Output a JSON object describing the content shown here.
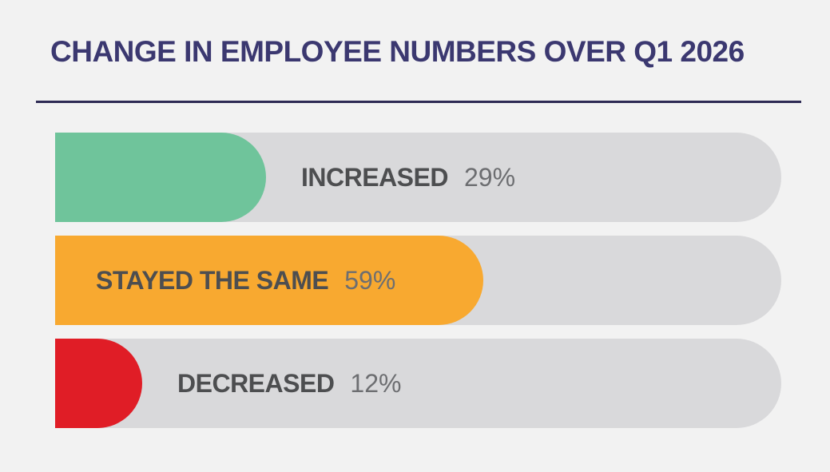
{
  "title": "CHANGE IN EMPLOYEE NUMBERS OVER Q1 2026",
  "colors": {
    "background": "#f2f2f2",
    "title": "#3b3870",
    "divider": "#2e2b55",
    "track": "#d9d9db",
    "label_text": "#4d4e50",
    "percent_text": "#6d6e71"
  },
  "chart_data": {
    "type": "bar",
    "orientation": "horizontal",
    "title": "CHANGE IN EMPLOYEE NUMBERS OVER Q1 2026",
    "categories": [
      "INCREASED",
      "STAYED THE SAME",
      "DECREASED"
    ],
    "values": [
      29,
      59,
      12
    ],
    "unit": "%",
    "series": [
      {
        "label": "INCREASED",
        "value": 29,
        "display": "29%",
        "color": "#6fc49b"
      },
      {
        "label": "STAYED THE SAME",
        "value": 59,
        "display": "59%",
        "color": "#f8a930"
      },
      {
        "label": "DECREASED",
        "value": 12,
        "display": "12%",
        "color": "#e01d26"
      }
    ],
    "xlim": [
      0,
      100
    ],
    "grid": false,
    "legend": false,
    "layout_hints": {
      "rounded_right_ends": true,
      "square_left_ends": true,
      "label_inside_fill_when_value_at_least": 50
    }
  }
}
